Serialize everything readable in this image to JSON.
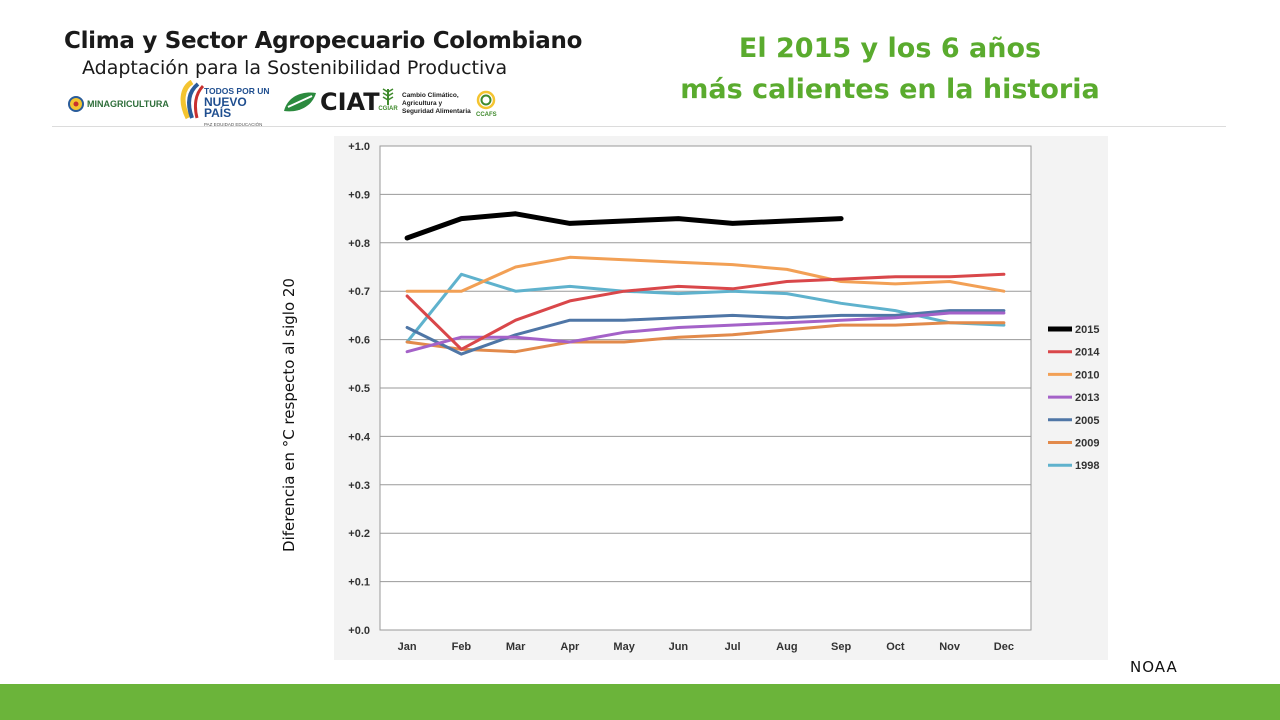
{
  "header": {
    "logo_title": "Clima y Sector Agropecuario Colombiano",
    "logo_subtitle": "Adaptación para la Sostenibilidad Productiva",
    "logos": {
      "minagricultura": "MINAGRICULTURA",
      "todos_line1": "TODOS POR UN",
      "todos_line2": "NUEVO PAÍS",
      "todos_line3": "PAZ  EQUIDAD  EDUCACIÓN",
      "ciat": "CIAT",
      "cgiar": "CGIAR",
      "ccafs_line1": "Cambio Climático,",
      "ccafs_line2": "Agricultura y",
      "ccafs_line3": "Seguridad Alimentaria",
      "ccafs": "CCAFS"
    }
  },
  "slide": {
    "title_line1": "El 2015 y los 6 años",
    "title_line2": "más calientes  en la historia",
    "y_axis_title": "Diferencia en °C respecto al siglo 20",
    "source": "NOAA"
  },
  "colors": {
    "title_green": "#5aab2e",
    "footer_green": "#6bb43a"
  },
  "chart_data": {
    "type": "line",
    "categories": [
      "Jan",
      "Feb",
      "Mar",
      "Apr",
      "May",
      "Jun",
      "Jul",
      "Aug",
      "Sep",
      "Oct",
      "Nov",
      "Dec"
    ],
    "ylim": [
      0,
      1.0
    ],
    "yticks": [
      "+0.0",
      "+0.1",
      "+0.2",
      "+0.3",
      "+0.4",
      "+0.5",
      "+0.6",
      "+0.7",
      "+0.8",
      "+0.9",
      "+1.0"
    ],
    "grid": true,
    "legend_position": "right",
    "series": [
      {
        "name": "2015",
        "color": "#000000",
        "values": [
          0.81,
          0.85,
          0.86,
          0.84,
          0.845,
          0.85,
          0.84,
          0.845,
          0.85,
          null,
          null,
          null
        ]
      },
      {
        "name": "2014",
        "color": "#d9474a",
        "values": [
          0.69,
          0.58,
          0.64,
          0.68,
          0.7,
          0.71,
          0.705,
          0.72,
          0.725,
          0.73,
          0.73,
          0.735
        ]
      },
      {
        "name": "2010",
        "color": "#f2a055",
        "values": [
          0.7,
          0.7,
          0.75,
          0.77,
          0.765,
          0.76,
          0.755,
          0.745,
          0.72,
          0.715,
          0.72,
          0.7
        ]
      },
      {
        "name": "2013",
        "color": "#a462c8",
        "values": [
          0.575,
          0.605,
          0.605,
          0.595,
          0.615,
          0.625,
          0.63,
          0.635,
          0.64,
          0.645,
          0.655,
          0.655
        ]
      },
      {
        "name": "2005",
        "color": "#4f76a6",
        "values": [
          0.625,
          0.57,
          0.61,
          0.64,
          0.64,
          0.645,
          0.65,
          0.645,
          0.65,
          0.65,
          0.66,
          0.66
        ]
      },
      {
        "name": "2009",
        "color": "#e28a4b",
        "values": [
          0.595,
          0.58,
          0.575,
          0.595,
          0.595,
          0.605,
          0.61,
          0.62,
          0.63,
          0.63,
          0.635,
          0.635
        ]
      },
      {
        "name": "1998",
        "color": "#5fb2cd",
        "values": [
          0.595,
          0.735,
          0.7,
          0.71,
          0.7,
          0.695,
          0.7,
          0.695,
          0.675,
          0.66,
          0.635,
          0.63
        ]
      }
    ]
  }
}
